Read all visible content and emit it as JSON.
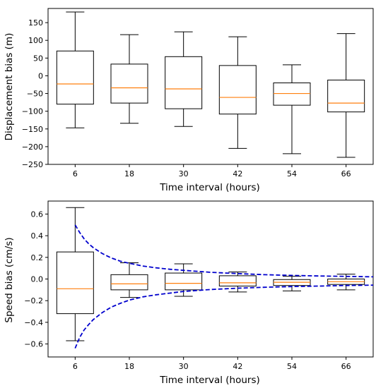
{
  "chart_data": [
    {
      "type": "box",
      "xlabel": "Time interval (hours)",
      "ylabel": "Displacement bias (m)",
      "categories": [
        "6",
        "18",
        "30",
        "42",
        "54",
        "66"
      ],
      "ylim": [
        -250,
        190
      ],
      "yticks": [
        -250,
        -200,
        -150,
        -100,
        -50,
        0,
        50,
        100,
        150
      ],
      "grid": false,
      "colors": {
        "box": "#000000",
        "median": "#ff7f0e"
      },
      "boxes": [
        {
          "whislo": -147,
          "q1": -80,
          "med": -23,
          "q3": 70,
          "whishi": 180
        },
        {
          "whislo": -134,
          "q1": -77,
          "med": -34,
          "q3": 33,
          "whishi": 116
        },
        {
          "whislo": -143,
          "q1": -93,
          "med": -37,
          "q3": 54,
          "whishi": 124
        },
        {
          "whislo": -205,
          "q1": -108,
          "med": -61,
          "q3": 29,
          "whishi": 110
        },
        {
          "whislo": -220,
          "q1": -83,
          "med": -50,
          "q3": -20,
          "whishi": 31
        },
        {
          "whislo": -230,
          "q1": -102,
          "med": -77,
          "q3": -12,
          "whishi": 119
        }
      ]
    },
    {
      "type": "box",
      "xlabel": "Time interval (hours)",
      "ylabel": "Speed bias (cm/s)",
      "categories": [
        "6",
        "18",
        "30",
        "42",
        "54",
        "66"
      ],
      "ylim": [
        -0.72,
        0.72
      ],
      "yticks": [
        -0.6,
        -0.4,
        -0.2,
        0.0,
        0.2,
        0.4,
        0.6
      ],
      "yticklabels": [
        "−0.6",
        "−0.4",
        "−0.2",
        "0.0",
        "0.2",
        "0.4",
        "0.6"
      ],
      "grid": false,
      "colors": {
        "box": "#000000",
        "median": "#ff7f0e",
        "envelope": "#0000cd"
      },
      "boxes": [
        {
          "whislo": -0.57,
          "q1": -0.32,
          "med": -0.09,
          "q3": 0.25,
          "whishi": 0.66
        },
        {
          "whislo": -0.17,
          "q1": -0.1,
          "med": -0.045,
          "q3": 0.04,
          "whishi": 0.15
        },
        {
          "whislo": -0.16,
          "q1": -0.1,
          "med": -0.04,
          "q3": 0.055,
          "whishi": 0.14
        },
        {
          "whislo": -0.12,
          "q1": -0.065,
          "med": -0.035,
          "q3": 0.03,
          "whishi": 0.065
        },
        {
          "whislo": -0.11,
          "q1": -0.06,
          "med": -0.03,
          "q3": -0.005,
          "whishi": 0.025
        },
        {
          "whislo": -0.1,
          "q1": -0.05,
          "med": -0.025,
          "q3": 0.0,
          "whishi": 0.045
        }
      ],
      "envelope": {
        "style": "dashed",
        "x": [
          6,
          7,
          8,
          9,
          10,
          12,
          14,
          16,
          18,
          21,
          24,
          27,
          30,
          36,
          42,
          48,
          54,
          60,
          66,
          72
        ],
        "upper": [
          0.5,
          0.43,
          0.37,
          0.325,
          0.29,
          0.235,
          0.195,
          0.165,
          0.145,
          0.12,
          0.103,
          0.09,
          0.08,
          0.062,
          0.05,
          0.04,
          0.033,
          0.028,
          0.024,
          0.02
        ],
        "lower": [
          -0.64,
          -0.54,
          -0.47,
          -0.42,
          -0.375,
          -0.31,
          -0.26,
          -0.225,
          -0.195,
          -0.165,
          -0.145,
          -0.13,
          -0.115,
          -0.097,
          -0.085,
          -0.076,
          -0.07,
          -0.065,
          -0.06,
          -0.057
        ]
      }
    }
  ]
}
